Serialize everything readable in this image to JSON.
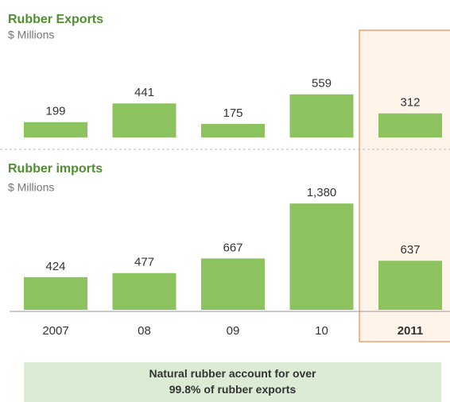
{
  "chart_data": [
    {
      "type": "bar",
      "title": "Rubber Exports",
      "subtitle": "$ Millions",
      "values": [
        199,
        441,
        175,
        559,
        312
      ],
      "color": "#8cc35f",
      "highlight_index": 4
    },
    {
      "type": "bar",
      "title": "Rubber imports",
      "subtitle": "$ Millions",
      "categories": [
        "2007",
        "08",
        "09",
        "10",
        "2011"
      ],
      "values": [
        424,
        477,
        667,
        1380,
        637
      ],
      "value_labels": [
        "424",
        "477",
        "667",
        "1,380",
        "637"
      ],
      "color": "#8cc35f",
      "highlight_index": 4
    }
  ],
  "annotation": "Natural rubber account for over 99.8% of rubber exports"
}
